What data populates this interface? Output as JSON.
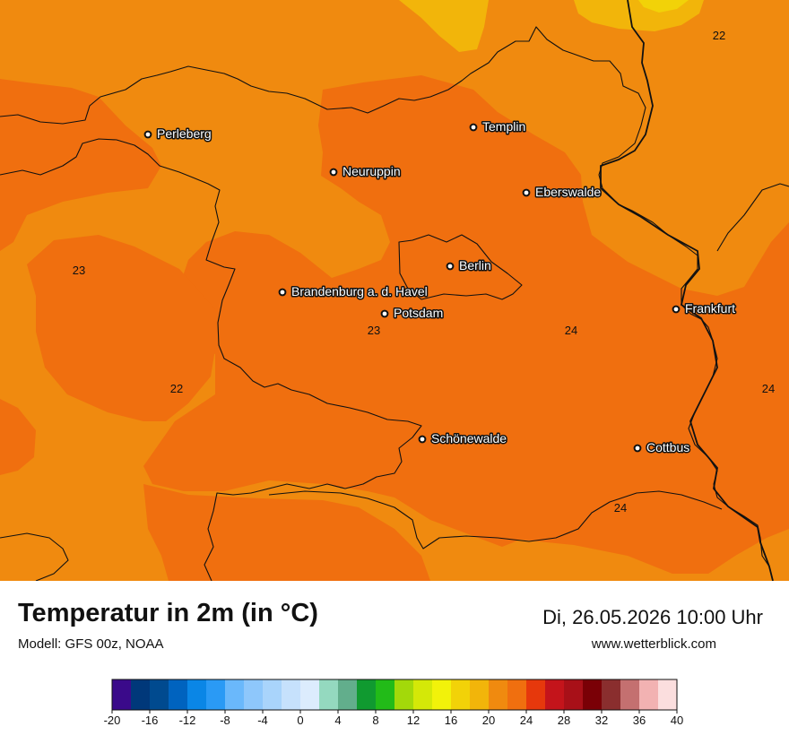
{
  "map": {
    "colors": {
      "t20_22": "#f08a0f",
      "t22_24": "#f06f0f",
      "t18_20": "#f2b50a",
      "t16_18": "#f2d208",
      "border": "#111111"
    },
    "cities": [
      {
        "name": "Perleberg",
        "icon": "city-dot-icon"
      },
      {
        "name": "Templin",
        "icon": "city-dot-icon"
      },
      {
        "name": "Neuruppin",
        "icon": "city-dot-icon"
      },
      {
        "name": "Eberswalde",
        "icon": "city-dot-icon"
      },
      {
        "name": "Berlin",
        "icon": "city-dot-icon"
      },
      {
        "name": "Brandenburg a. d. Havel",
        "icon": "city-dot-icon"
      },
      {
        "name": "Potsdam",
        "icon": "city-dot-icon"
      },
      {
        "name": "Frankfurt",
        "icon": "city-dot-icon"
      },
      {
        "name": "Schönewalde",
        "icon": "city-dot-icon"
      },
      {
        "name": "Cottbus",
        "icon": "city-dot-icon"
      }
    ],
    "isotherm_labels": [
      "22",
      "23",
      "23",
      "24",
      "22",
      "24",
      "24"
    ]
  },
  "footer": {
    "title": "Temperatur in 2m (in °C)",
    "model": "Modell: GFS 00z, NOAA",
    "datetime": "Di, 26.05.2026 10:00 Uhr",
    "website": "www.wetterblick.com"
  },
  "legend": {
    "ticks": [
      "-20",
      "-16",
      "-12",
      "-8",
      "-4",
      "0",
      "4",
      "8",
      "12",
      "16",
      "20",
      "24",
      "28",
      "32",
      "36",
      "40"
    ],
    "colors": [
      "#3a0a8a",
      "#00387a",
      "#004a8f",
      "#0063bf",
      "#0a86e6",
      "#2a9af5",
      "#6ab8fb",
      "#8ec7fb",
      "#a9d4fb",
      "#c6e1fc",
      "#dcecfd",
      "#94d9bf",
      "#62ae8c",
      "#109a30",
      "#22bb18",
      "#a3d90a",
      "#d4e808",
      "#f2f20a",
      "#f2d208",
      "#f2b50a",
      "#f08a0f",
      "#f06f0f",
      "#e6380c",
      "#c4141b",
      "#a81018",
      "#7a0006",
      "#8a2e2e",
      "#c47070",
      "#f2b2b2",
      "#fbdede"
    ]
  }
}
